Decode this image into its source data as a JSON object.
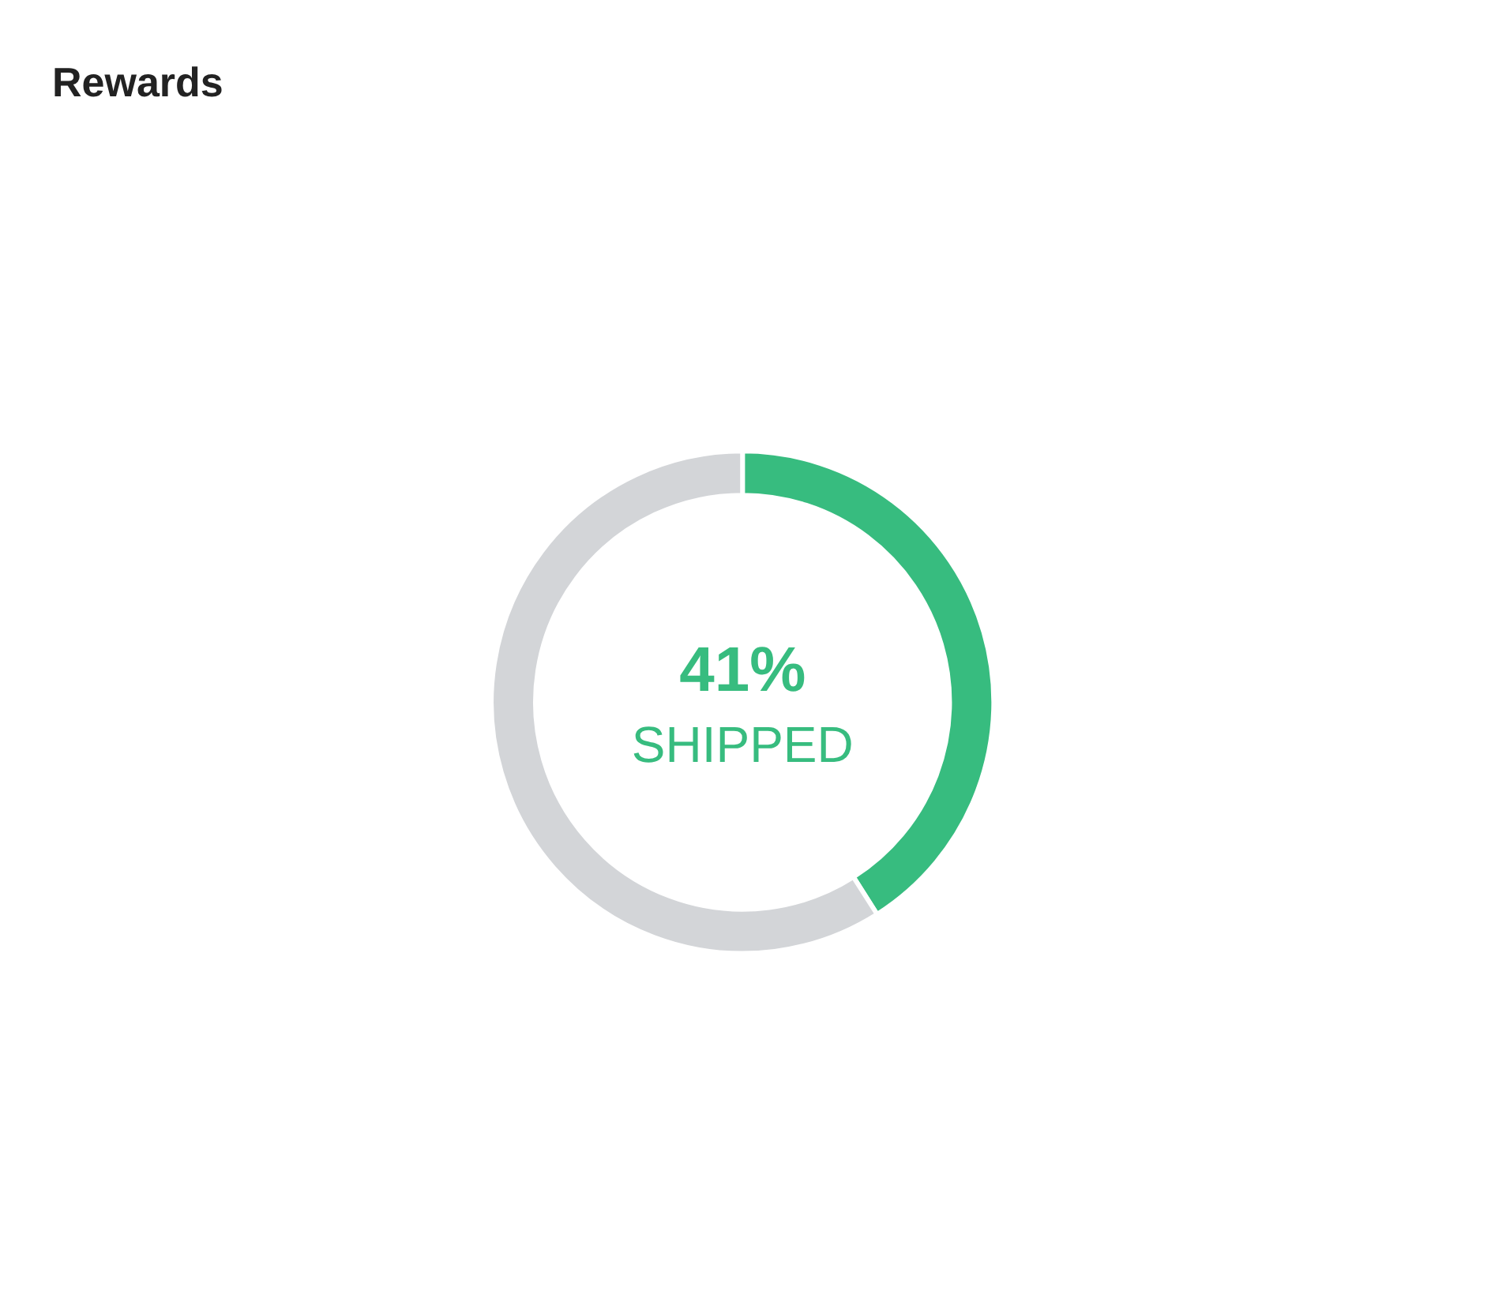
{
  "chart_data": {
    "type": "donut",
    "title": "Rewards",
    "categories": [
      "SHIPPED",
      null
    ],
    "values": [
      41,
      59
    ],
    "colors": [
      "#37bc7f",
      "#d3d5d8"
    ],
    "value_labels": [
      "41%",
      null
    ]
  }
}
